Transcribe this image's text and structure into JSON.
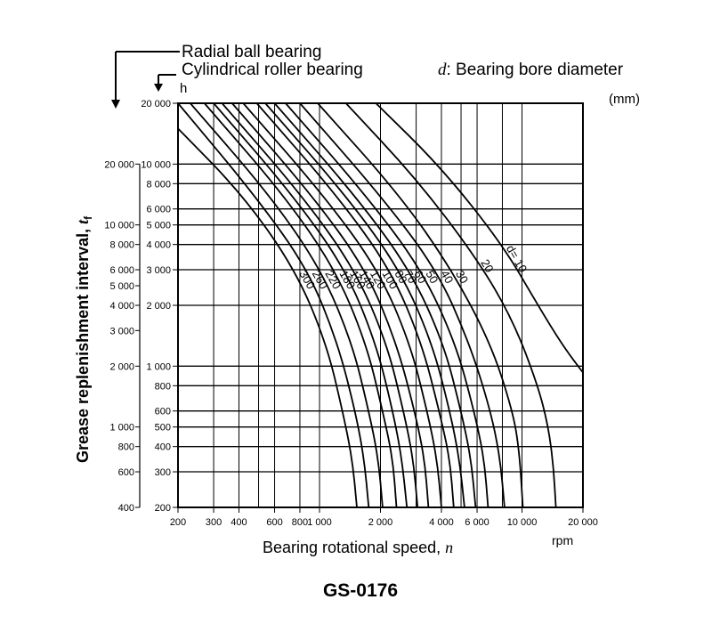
{
  "chart_data": {
    "type": "line",
    "legend_ball": "Radial ball bearing",
    "legend_roller": "Cylindrical roller bearing",
    "d_symbol": "d",
    "d_note": ": Bearing bore diameter",
    "unit_mm": "(mm)",
    "h_unit": "h",
    "xlabel": "Bearing rotational speed, ",
    "xvar": "n",
    "xunit": "rpm",
    "ylabel": "Grease replenishment interval, ",
    "yvar": "t",
    "ysub": "f",
    "figure_id": "GS-0176",
    "x_scale": "log",
    "xlim": [
      200,
      20000
    ],
    "x_ticks": [
      {
        "value": 200,
        "label": "200"
      },
      {
        "value": 300,
        "label": "300"
      },
      {
        "value": 400,
        "label": "400"
      },
      {
        "value": 600,
        "label": "600"
      },
      {
        "value": 800,
        "label": "800"
      },
      {
        "value": 1000,
        "label": "1 000"
      },
      {
        "value": 2000,
        "label": "2 000"
      },
      {
        "value": 4000,
        "label": "4 000"
      },
      {
        "value": 6000,
        "label": "6 000"
      },
      {
        "value": 10000,
        "label": "10 000"
      },
      {
        "value": 20000,
        "label": "20 000"
      }
    ],
    "y_scale": "log",
    "ylim_roller": [
      200,
      20000
    ],
    "y_ticks_roller": [
      {
        "value": 200,
        "label": "200"
      },
      {
        "value": 300,
        "label": "300"
      },
      {
        "value": 400,
        "label": "400"
      },
      {
        "value": 500,
        "label": "500"
      },
      {
        "value": 600,
        "label": "600"
      },
      {
        "value": 800,
        "label": "800"
      },
      {
        "value": 1000,
        "label": "1 000"
      },
      {
        "value": 2000,
        "label": "2 000"
      },
      {
        "value": 3000,
        "label": "3 000"
      },
      {
        "value": 4000,
        "label": "4 000"
      },
      {
        "value": 5000,
        "label": "5 000"
      },
      {
        "value": 6000,
        "label": "6 000"
      },
      {
        "value": 8000,
        "label": "8 000"
      },
      {
        "value": 10000,
        "label": "10 000"
      },
      {
        "value": 20000,
        "label": "20 000"
      }
    ],
    "y_ticks_ball": [
      {
        "value": 400,
        "label": "400"
      },
      {
        "value": 600,
        "label": "600"
      },
      {
        "value": 800,
        "label": "800"
      },
      {
        "value": 1000,
        "label": "1 000"
      },
      {
        "value": 2000,
        "label": "2 000"
      },
      {
        "value": 3000,
        "label": "3 000"
      },
      {
        "value": 4000,
        "label": "4 000"
      },
      {
        "value": 5000,
        "label": "5 000"
      },
      {
        "value": 6000,
        "label": "6 000"
      },
      {
        "value": 8000,
        "label": "8 000"
      },
      {
        "value": 10000,
        "label": "10 000"
      },
      {
        "value": 20000,
        "label": "20 000"
      }
    ],
    "gridlines_y_major": [
      10000,
      8000,
      6000,
      5000,
      4000,
      3000,
      2000,
      1000,
      800,
      600,
      500,
      400,
      300
    ],
    "gridlines_x": [
      300,
      400,
      500,
      600,
      800,
      1000,
      2000,
      3000,
      4000,
      5000,
      6000,
      8000,
      10000
    ],
    "series": [
      {
        "name": "10",
        "label": "d= 10",
        "points": [
          [
            1900,
            20000
          ],
          [
            4000,
            9600
          ],
          [
            8000,
            4000
          ],
          [
            12000,
            2000
          ],
          [
            16000,
            1250
          ],
          [
            20000,
            930
          ]
        ]
      },
      {
        "name": "20",
        "label": "20",
        "points": [
          [
            1350,
            20000
          ],
          [
            3000,
            8500
          ],
          [
            6000,
            3400
          ],
          [
            9000,
            1700
          ],
          [
            12000,
            800
          ],
          [
            13500,
            500
          ],
          [
            14300,
            320
          ],
          [
            14700,
            200
          ]
        ]
      },
      {
        "name": "30",
        "label": "30",
        "points": [
          [
            980,
            20000
          ],
          [
            2500,
            7000
          ],
          [
            4500,
            3000
          ],
          [
            7000,
            1300
          ],
          [
            9000,
            600
          ],
          [
            9700,
            380
          ],
          [
            10100,
            200
          ]
        ]
      },
      {
        "name": "40",
        "label": "40",
        "points": [
          [
            800,
            20000
          ],
          [
            2000,
            7000
          ],
          [
            3800,
            3000
          ],
          [
            5500,
            1300
          ],
          [
            7000,
            600
          ],
          [
            7800,
            350
          ],
          [
            8200,
            200
          ]
        ]
      },
      {
        "name": "50",
        "label": "50",
        "points": [
          [
            680,
            20000
          ],
          [
            1700,
            7000
          ],
          [
            3200,
            3000
          ],
          [
            4700,
            1300
          ],
          [
            5800,
            600
          ],
          [
            6500,
            350
          ],
          [
            6800,
            200
          ]
        ]
      },
      {
        "name": "60",
        "label": "60",
        "points": [
          [
            600,
            20000
          ],
          [
            1500,
            7000
          ],
          [
            2800,
            3000
          ],
          [
            4100,
            1300
          ],
          [
            5000,
            600
          ],
          [
            5600,
            350
          ],
          [
            5900,
            200
          ]
        ]
      },
      {
        "name": "70",
        "label": "70",
        "points": [
          [
            540,
            20000
          ],
          [
            1350,
            7000
          ],
          [
            2500,
            3000
          ],
          [
            3600,
            1300
          ],
          [
            4400,
            600
          ],
          [
            4900,
            350
          ],
          [
            5200,
            200
          ]
        ]
      },
      {
        "name": "80",
        "label": "80",
        "points": [
          [
            490,
            20000
          ],
          [
            1220,
            7000
          ],
          [
            2250,
            3000
          ],
          [
            3200,
            1300
          ],
          [
            3900,
            600
          ],
          [
            4400,
            350
          ],
          [
            4600,
            200
          ]
        ]
      },
      {
        "name": "100",
        "label": "100",
        "points": [
          [
            420,
            20000
          ],
          [
            1050,
            7000
          ],
          [
            1950,
            3000
          ],
          [
            2800,
            1300
          ],
          [
            3400,
            600
          ],
          [
            3800,
            350
          ],
          [
            4000,
            200
          ]
        ]
      },
      {
        "name": "120",
        "label": "120",
        "points": [
          [
            370,
            20000
          ],
          [
            920,
            7000
          ],
          [
            1700,
            3000
          ],
          [
            2400,
            1300
          ],
          [
            2950,
            600
          ],
          [
            3300,
            350
          ],
          [
            3450,
            200
          ]
        ]
      },
      {
        "name": "140",
        "label": "140",
        "points": [
          [
            330,
            20000
          ],
          [
            820,
            7000
          ],
          [
            1500,
            3000
          ],
          [
            2150,
            1300
          ],
          [
            2600,
            600
          ],
          [
            2900,
            350
          ],
          [
            3050,
            200
          ]
        ]
      },
      {
        "name": "160",
        "label": "160",
        "points": [
          [
            300,
            20000
          ],
          [
            740,
            7000
          ],
          [
            1350,
            3000
          ],
          [
            1900,
            1300
          ],
          [
            2300,
            600
          ],
          [
            2550,
            350
          ],
          [
            2700,
            200
          ]
        ]
      },
      {
        "name": "180",
        "label": "180",
        "points": [
          [
            270,
            20000
          ],
          [
            670,
            7000
          ],
          [
            1200,
            3000
          ],
          [
            1700,
            1300
          ],
          [
            2050,
            600
          ],
          [
            2300,
            350
          ],
          [
            2400,
            200
          ]
        ]
      },
      {
        "name": "220",
        "label": "220",
        "points": [
          [
            230,
            20000
          ],
          [
            570,
            7000
          ],
          [
            1020,
            3000
          ],
          [
            1450,
            1300
          ],
          [
            1750,
            600
          ],
          [
            1950,
            350
          ],
          [
            2050,
            200
          ]
        ]
      },
      {
        "name": "260",
        "label": "260",
        "points": [
          [
            200,
            20000
          ],
          [
            480,
            7000
          ],
          [
            880,
            3000
          ],
          [
            1230,
            1300
          ],
          [
            1500,
            600
          ],
          [
            1660,
            350
          ],
          [
            1750,
            200
          ]
        ]
      },
      {
        "name": "300",
        "label": "300",
        "points": [
          [
            200,
            15000
          ],
          [
            420,
            7000
          ],
          [
            760,
            3000
          ],
          [
            1080,
            1300
          ],
          [
            1300,
            600
          ],
          [
            1450,
            350
          ],
          [
            1530,
            200
          ]
        ]
      }
    ]
  }
}
